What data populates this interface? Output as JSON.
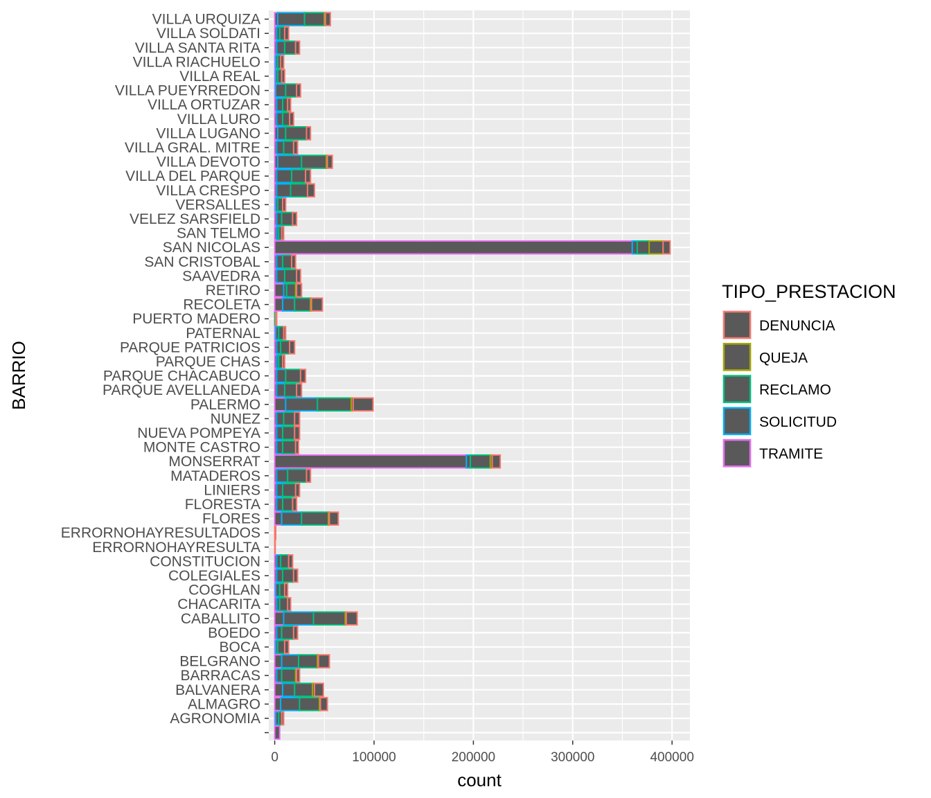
{
  "chart_data": {
    "type": "bar",
    "orientation": "horizontal",
    "stacked": true,
    "xlabel": "count",
    "ylabel": "BARRIO",
    "xlim": [
      -6000,
      418000
    ],
    "xticks": [
      0,
      100000,
      200000,
      300000,
      400000
    ],
    "xtick_labels": [
      "0",
      "100000",
      "200000",
      "300000",
      "400000"
    ],
    "grid": true,
    "legend_position": "right",
    "legend_title": "TIPO_PRESTACION",
    "fill_color": "#595959",
    "panel_background": "#ebebeb",
    "categories": [
      "",
      "AGRONOMIA",
      "ALMAGRO",
      "BALVANERA",
      "BARRACAS",
      "BELGRANO",
      "BOCA",
      "BOEDO",
      "CABALLITO",
      "CHACARITA",
      "COGHLAN",
      "COLEGIALES",
      "CONSTITUCION",
      "ERRORNOHAYRESULTA",
      "ERRORNOHAYRESULTADOS",
      "FLORES",
      "FLORESTA",
      "LINIERS",
      "MATADEROS",
      "MONSERRAT",
      "MONTE CASTRO",
      "NUEVA POMPEYA",
      "NUNEZ",
      "PALERMO",
      "PARQUE AVELLANEDA",
      "PARQUE CHACABUCO",
      "PARQUE CHAS",
      "PARQUE PATRICIOS",
      "PATERNAL",
      "PUERTO MADERO",
      "RECOLETA",
      "RETIRO",
      "SAAVEDRA",
      "SAN CRISTOBAL",
      "SAN NICOLAS",
      "SAN TELMO",
      "VELEZ SARSFIELD",
      "VERSALLES",
      "VILLA CRESPO",
      "VILLA DEL PARQUE",
      "VILLA DEVOTO",
      "VILLA GRAL. MITRE",
      "VILLA LUGANO",
      "VILLA LURO",
      "VILLA ORTUZAR",
      "VILLA PUEYRREDON",
      "VILLA REAL",
      "VILLA RIACHUELO",
      "VILLA SANTA RITA",
      "VILLA SOLDATI",
      "VILLA URQUIZA"
    ],
    "series": [
      {
        "name": "TRAMITE",
        "color": "#E76BF3",
        "values": [
          5000,
          1000,
          6000,
          8000,
          2000,
          7000,
          1000,
          2000,
          9000,
          2000,
          1000,
          2000,
          2000,
          0,
          0,
          7000,
          2000,
          2000,
          2000,
          193000,
          2000,
          2000,
          2000,
          11000,
          2000,
          2000,
          2000,
          2000,
          1000,
          0,
          8000,
          9000,
          2000,
          2000,
          360000,
          2000,
          2000,
          1000,
          2000,
          2000,
          3000,
          2000,
          3000,
          2000,
          2000,
          1000,
          1000,
          1000,
          2000,
          2000,
          3000
        ]
      },
      {
        "name": "SOLICITUD",
        "color": "#00B0F6",
        "values": [
          0,
          3000,
          19000,
          12000,
          5000,
          17000,
          2000,
          5000,
          30000,
          3000,
          4000,
          6000,
          4000,
          0,
          0,
          20000,
          6000,
          6000,
          11000,
          4000,
          6000,
          6000,
          7000,
          32000,
          8000,
          9000,
          2000,
          4000,
          3000,
          0,
          12000,
          3000,
          8000,
          6000,
          5000,
          2000,
          5000,
          2000,
          14000,
          15000,
          24000,
          7000,
          8000,
          6000,
          6000,
          10000,
          2000,
          2000,
          8000,
          3000,
          27000
        ]
      },
      {
        "name": "RECLAMO",
        "color": "#00BF7D",
        "values": [
          0,
          3000,
          20000,
          18000,
          14000,
          19000,
          7000,
          12000,
          32000,
          8000,
          5000,
          11000,
          8000,
          0,
          0,
          27000,
          10000,
          13000,
          19000,
          20000,
          13000,
          12000,
          11000,
          34000,
          12000,
          15000,
          4000,
          9000,
          5000,
          1000,
          16000,
          9000,
          12000,
          9000,
          12000,
          3000,
          11000,
          5000,
          17000,
          14000,
          25000,
          10000,
          21000,
          7000,
          5000,
          11000,
          4000,
          3000,
          11000,
          5000,
          20000
        ]
      },
      {
        "name": "QUEJA",
        "color": "#A3A500",
        "values": [
          0,
          0,
          1000,
          2000,
          1000,
          1000,
          0,
          0,
          1000,
          0,
          0,
          0,
          0,
          0,
          0,
          1000,
          0,
          0,
          0,
          2000,
          0,
          0,
          0,
          2000,
          0,
          0,
          0,
          0,
          0,
          0,
          1000,
          1000,
          0,
          0,
          14000,
          0,
          0,
          0,
          0,
          0,
          1000,
          0,
          0,
          0,
          0,
          0,
          0,
          0,
          0,
          0,
          1000
        ]
      },
      {
        "name": "DENUNCIA",
        "color": "#F8766D",
        "values": [
          0,
          2000,
          7000,
          9000,
          3000,
          11000,
          4000,
          4000,
          11000,
          3000,
          3000,
          4000,
          4000,
          500,
          1000,
          9000,
          4000,
          4000,
          4000,
          8000,
          3000,
          5000,
          5000,
          20000,
          5000,
          5000,
          2000,
          5000,
          2000,
          1000,
          11000,
          5000,
          4000,
          4000,
          7000,
          2000,
          4000,
          3000,
          7000,
          5000,
          5000,
          4000,
          4000,
          4000,
          3000,
          4000,
          3000,
          3000,
          4000,
          4000,
          5000
        ]
      }
    ]
  }
}
